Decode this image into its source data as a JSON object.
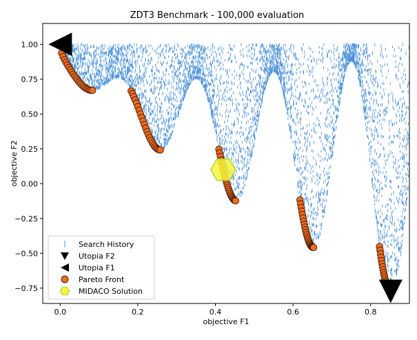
{
  "chart_data": {
    "type": "scatter",
    "title": "ZDT3 Benchmark - 100,000 evaluation",
    "xlabel": "objective F1",
    "ylabel": "objective F2",
    "xlim": [
      -0.045,
      0.9
    ],
    "ylim": [
      -0.86,
      1.15
    ],
    "xticks": [
      0.0,
      0.2,
      0.4,
      0.6,
      0.8
    ],
    "xtick_labels": [
      "0.0",
      "0.2",
      "0.4",
      "0.6",
      "0.8"
    ],
    "yticks": [
      1.0,
      0.75,
      0.5,
      0.25,
      0.0,
      -0.25,
      -0.5,
      -0.75
    ],
    "ytick_labels": [
      "1.00",
      "0.75",
      "0.50",
      "0.25",
      "0.00",
      "−0.25",
      "−0.50",
      "−0.75"
    ],
    "grid": false,
    "legend_position": "lower-left",
    "colors": {
      "search_history": "#4a90d9",
      "utopia": "#000000",
      "pareto_face": "#f26b1d",
      "pareto_edge": "#3a1a08",
      "midaco_face": "#f5f53a",
      "midaco_edge": "#9acd32"
    },
    "series": [
      {
        "name": "Search History",
        "marker": "vline",
        "note_points_generated": true
      },
      {
        "name": "Utopia F2",
        "marker": "triangle-down",
        "points": [
          [
            0.8517,
            -0.7733
          ]
        ]
      },
      {
        "name": "Utopia F1",
        "marker": "triangle-left",
        "points": [
          [
            0.0,
            1.0
          ]
        ]
      },
      {
        "name": "Pareto Front",
        "marker": "circle",
        "segments": [
          [
            0.0,
            0.083
          ],
          [
            0.183,
            0.258
          ],
          [
            0.409,
            0.452
          ],
          [
            0.618,
            0.653
          ],
          [
            0.823,
            0.852
          ]
        ]
      },
      {
        "name": "MIDACO Solution",
        "marker": "hexagon",
        "points": [
          [
            0.42,
            0.1
          ]
        ]
      }
    ]
  }
}
